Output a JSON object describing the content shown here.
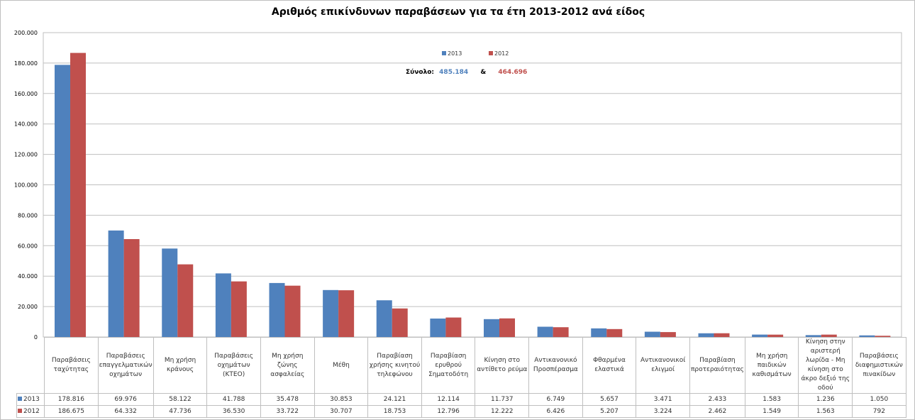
{
  "chart_data": {
    "type": "bar",
    "title": "Αριθμός επικίνδυνων παραβάσεων για τα έτη 2013-2012 ανά είδος",
    "xlabel": "",
    "ylabel": "",
    "ylim": [
      0,
      200000
    ],
    "yticks": [
      "0",
      "20.000",
      "40.000",
      "60.000",
      "80.000",
      "100.000",
      "120.000",
      "140.000",
      "160.000",
      "180.000",
      "200.000"
    ],
    "grid": true,
    "legend_position": "top-center",
    "categories": [
      "Παραβάσεις ταχύτητας",
      "Παραβάσεις επαγγελματικών οχημάτων",
      "Μη χρήση κράνους",
      "Παραβάσεις οχημάτων (ΚΤΕΟ)",
      "Μη χρήση ζώνης ασφαλείας",
      "Μέθη",
      "Παραβίαση χρήσης κινητού τηλεφώνου",
      "Παραβίαση ερυθρού Σηματοδότη",
      "Κίνηση στο αντίθετο ρεύμα",
      "Αντικανονικό Προσπέρασμα",
      "Φθαρμένα ελαστικά",
      "Αντικανονικοί ελιγμοί",
      "Παραβίαση προτεραιότητας",
      "Μη χρήση παιδικών καθισμάτων",
      "Κίνηση στην αριστερή λωρίδα - Μη κίνηση στο άκρο δεξιό της οδού",
      "Παραβάσεις διαφημιστικών πινακίδων"
    ],
    "series": [
      {
        "name": "2013",
        "color": "#4f81bd",
        "values": [
          178816,
          69976,
          58122,
          41788,
          35478,
          30853,
          24121,
          12114,
          11737,
          6749,
          5657,
          3471,
          2433,
          1583,
          1236,
          1050
        ],
        "labels": [
          "178.816",
          "69.976",
          "58.122",
          "41.788",
          "35.478",
          "30.853",
          "24.121",
          "12.114",
          "11.737",
          "6.749",
          "5.657",
          "3.471",
          "2.433",
          "1.583",
          "1.236",
          "1.050"
        ]
      },
      {
        "name": "2012",
        "color": "#c0504d",
        "values": [
          186675,
          64332,
          47736,
          36530,
          33722,
          30707,
          18753,
          12796,
          12222,
          6426,
          5207,
          3224,
          2462,
          1549,
          1563,
          792
        ],
        "labels": [
          "186.675",
          "64.332",
          "47.736",
          "36.530",
          "33.722",
          "30.707",
          "18.753",
          "12.796",
          "12.222",
          "6.426",
          "5.207",
          "3.224",
          "2.462",
          "1.549",
          "1.563",
          "792"
        ]
      }
    ],
    "annotation": {
      "label": "Σύνολο:",
      "total_2013": "485.184",
      "separator": "&",
      "total_2012": "464.696"
    }
  }
}
